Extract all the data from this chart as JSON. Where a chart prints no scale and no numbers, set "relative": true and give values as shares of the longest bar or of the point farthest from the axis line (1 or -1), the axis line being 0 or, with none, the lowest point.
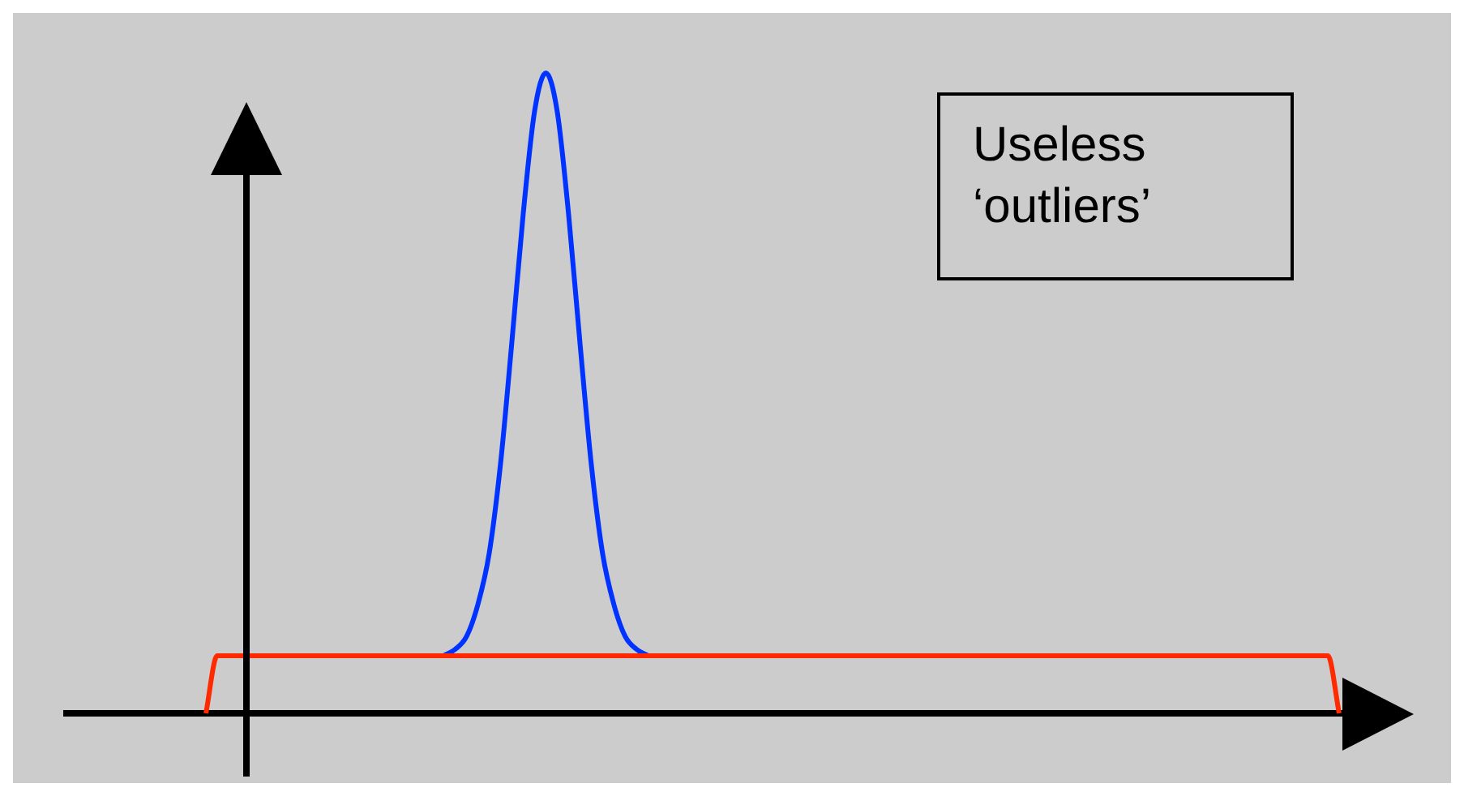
{
  "chart_data": {
    "type": "line",
    "relative": true,
    "categories": [
      null,
      null,
      null,
      null,
      null,
      null,
      null,
      null,
      null,
      null,
      null,
      null,
      null,
      null,
      null,
      null,
      null,
      null,
      null,
      null,
      null,
      null,
      null,
      null,
      null,
      null,
      null,
      null,
      null,
      null,
      null,
      null,
      null,
      null,
      null,
      null,
      null,
      null,
      null,
      null,
      null,
      null,
      null,
      null,
      null,
      null,
      null,
      null,
      null,
      null,
      null,
      null,
      null,
      null,
      null,
      null,
      null,
      null,
      null,
      null,
      null,
      null,
      null,
      null,
      null,
      null,
      null,
      null,
      null,
      null,
      null,
      null,
      null,
      null,
      null,
      null,
      null,
      null,
      null,
      null,
      null,
      null,
      null,
      null,
      null,
      null,
      null,
      null,
      null,
      null,
      null,
      null,
      null,
      null,
      null,
      null,
      null,
      null,
      null,
      null,
      null
    ],
    "series": [
      {
        "color": "#ff2a00",
        "values": [
          0,
          0.09,
          0.09,
          0.09,
          0.09,
          0.09,
          0.09,
          0.09,
          0.09,
          0.09,
          0.09,
          0.09,
          0.09,
          0.09,
          0.09,
          0.09,
          0.09,
          0.09,
          0.09,
          0.09,
          0.09,
          0.09,
          0.09,
          0.09,
          0.09,
          0.09,
          0.09,
          0.09,
          0.09,
          0.09,
          0.09,
          0.09,
          0.09,
          0.09,
          0.09,
          0.09,
          0.09,
          0.09,
          0.09,
          0.09,
          0.09,
          0.09,
          0.09,
          0.09,
          0.09,
          0.09,
          0.09,
          0.09,
          0.09,
          0.09,
          0.09,
          0.09,
          0.09,
          0.09,
          0.09,
          0.09,
          0.09,
          0.09,
          0.09,
          0.09,
          0.09,
          0.09,
          0.09,
          0.09,
          0.09,
          0.09,
          0.09,
          0.09,
          0.09,
          0.09,
          0.09,
          0.09,
          0.09,
          0.09,
          0.09,
          0.09,
          0.09,
          0.09,
          0.09,
          0.09,
          0.09,
          0.09,
          0.09,
          0.09,
          0.09,
          0.09,
          0.09,
          0.09,
          0.09,
          0.09,
          0.09,
          0.09,
          0.09,
          0.09,
          0.09,
          0.09,
          0.09,
          0.09,
          0.09,
          0.09,
          0
        ]
      },
      {
        "color": "#0033ff",
        "values": [
          null,
          null,
          null,
          null,
          null,
          null,
          null,
          null,
          null,
          null,
          null,
          null,
          null,
          null,
          null,
          null,
          null,
          null,
          null,
          null,
          null,
          0.09,
          0.1,
          0.12,
          0.17,
          0.25,
          0.39,
          0.58,
          0.78,
          0.94,
          1,
          0.94,
          0.78,
          0.58,
          0.39,
          0.25,
          0.17,
          0.12,
          0.1,
          0.09,
          null,
          null,
          null,
          null,
          null,
          null,
          null,
          null,
          null,
          null,
          null,
          null,
          null,
          null,
          null,
          null,
          null,
          null,
          null,
          null,
          null,
          null,
          null,
          null,
          null,
          null,
          null,
          null,
          null,
          null,
          null,
          null,
          null,
          null,
          null,
          null,
          null,
          null,
          null,
          null,
          null,
          null,
          null,
          null,
          null,
          null,
          null,
          null,
          null,
          null,
          null,
          null,
          null,
          null,
          null,
          null,
          null,
          null,
          null,
          null,
          null
        ]
      }
    ],
    "annotations": [
      "Useless ‘outliers’"
    ]
  }
}
